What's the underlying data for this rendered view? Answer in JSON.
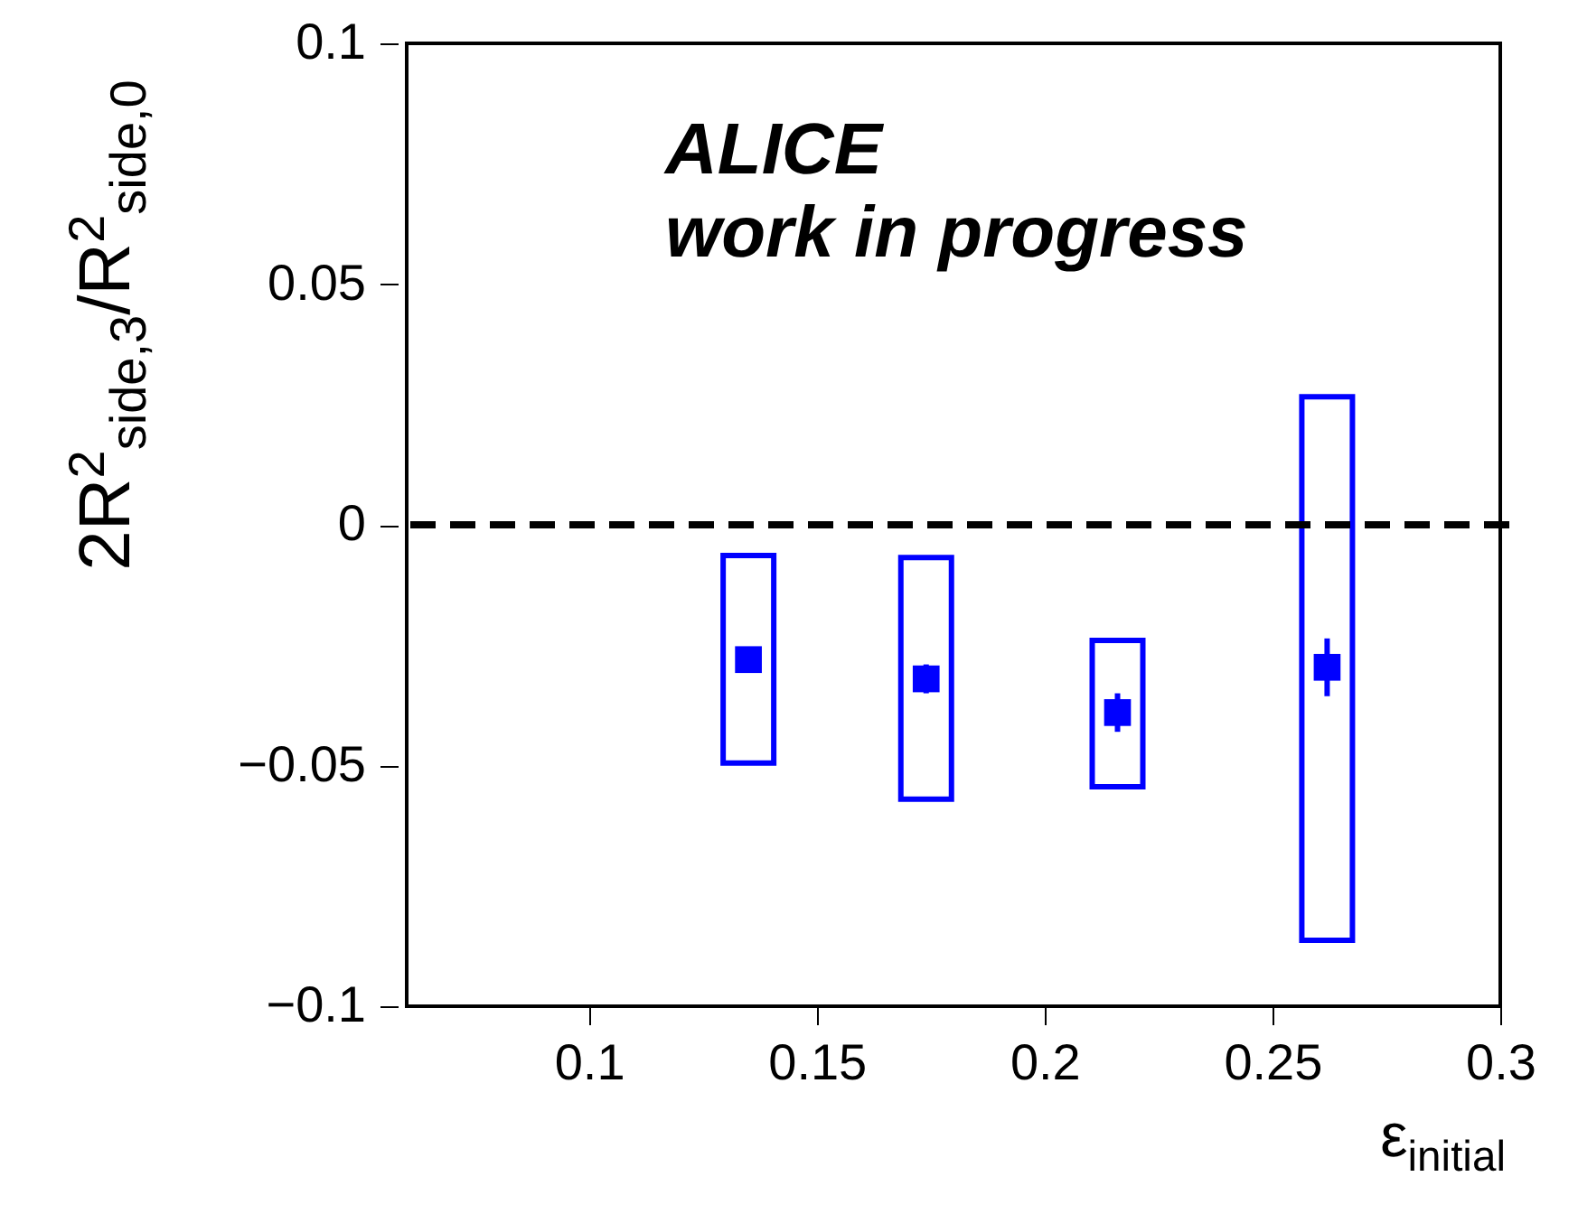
{
  "chart_data": {
    "type": "scatter",
    "xlabel": "ε$_{initial}$",
    "ylabel": "2R$^{2}$$_{side,3}$/R$^{2}$$_{side,0}$",
    "annotations": [
      "ALICE",
      "work in progress"
    ],
    "xlim": [
      0.06,
      0.3
    ],
    "xticks": [
      0.1,
      0.15,
      0.2,
      0.25,
      0.3
    ],
    "ylim": [
      -0.1,
      0.1
    ],
    "yticks": [
      -0.1,
      -0.05,
      0,
      0.05,
      0.1
    ],
    "ref_lines": [
      {
        "axis": "y",
        "value": 0,
        "color": "#000000",
        "line_style": "dashed"
      }
    ],
    "series": [
      {
        "type": "bar",
        "color": "#0000ff",
        "x": [
          0.135,
          0.174,
          0.216,
          0.262
        ],
        "base": [
          -0.0495,
          -0.057,
          -0.0544,
          -0.0863
        ],
        "values": [
          0.0431,
          0.0502,
          0.0304,
          0.1129
        ]
      },
      {
        "color": "#0000ff",
        "marker": "square",
        "x": [
          0.135,
          0.174,
          0.216,
          0.262
        ],
        "values": [
          -0.028,
          -0.032,
          -0.039,
          -0.0296
        ],
        "errors": [
          0.001,
          0.003,
          0.004,
          0.006
        ]
      }
    ]
  }
}
